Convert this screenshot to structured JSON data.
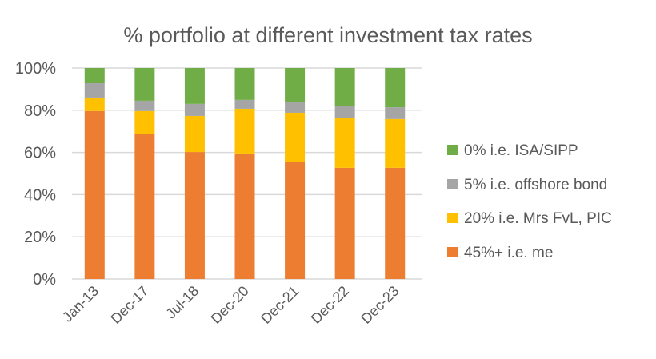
{
  "chart_data": {
    "type": "bar",
    "stacked": true,
    "title": "% portfolio at different investment tax rates",
    "xlabel": "",
    "ylabel": "",
    "ylim": [
      0,
      100
    ],
    "yticks": [
      "0%",
      "20%",
      "40%",
      "60%",
      "80%",
      "100%"
    ],
    "grid": true,
    "legend_position": "right",
    "categories": [
      "Jan-13",
      "Dec-17",
      "Jul-18",
      "Dec-20",
      "Dec-21",
      "Dec-22",
      "Dec-23"
    ],
    "series": [
      {
        "name": "45%+ i.e. me",
        "color": "#ED7D31",
        "values": [
          79.6,
          68.6,
          60.2,
          59.5,
          55.3,
          52.7,
          52.7
        ]
      },
      {
        "name": "20% i.e. Mrs FvL, PIC",
        "color": "#FFC000",
        "values": [
          6.4,
          11.0,
          17.1,
          21.2,
          23.5,
          23.8,
          23.1
        ]
      },
      {
        "name": "5% i.e. offshore bond",
        "color": "#A5A5A5",
        "values": [
          6.8,
          4.9,
          5.7,
          4.2,
          4.9,
          5.7,
          5.6
        ]
      },
      {
        "name": "0% i.e. ISA/SIPP",
        "color": "#70AD47",
        "values": [
          7.2,
          15.5,
          17.0,
          15.1,
          16.3,
          17.8,
          18.6
        ]
      }
    ]
  }
}
